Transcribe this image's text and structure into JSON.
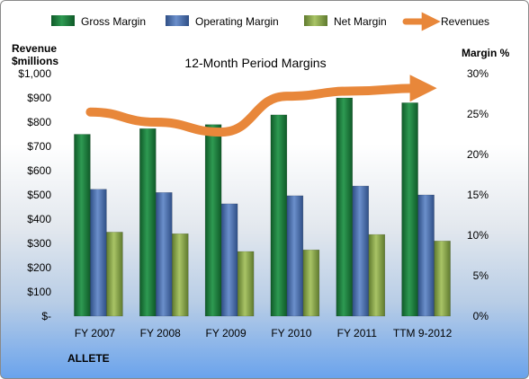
{
  "chart_data": {
    "type": "bar",
    "title": "12-Month Period Margins",
    "company": "ALLETE",
    "categories": [
      "FY 2007",
      "FY 2008",
      "FY 2009",
      "FY 2010",
      "FY 2011",
      "TTM 9-2012"
    ],
    "y_left": {
      "label_line1": "Revenue",
      "label_line2": "$millions",
      "ticks": [
        "$-",
        "$100",
        "$200",
        "$300",
        "$400",
        "$500",
        "$600",
        "$700",
        "$800",
        "$900",
        "$1,000"
      ],
      "range": [
        0,
        1000
      ]
    },
    "y_right": {
      "label": "Margin %",
      "ticks": [
        "0%",
        "5%",
        "10%",
        "15%",
        "20%",
        "25%",
        "30%"
      ],
      "range": [
        0,
        30
      ]
    },
    "grid": false,
    "legend_position": "top",
    "series": [
      {
        "name": "Gross Margin",
        "axis": "right",
        "color": "#1e7a3c",
        "values": [
          22.5,
          23.2,
          23.7,
          24.9,
          27.0,
          26.4
        ]
      },
      {
        "name": "Operating Margin",
        "axis": "right",
        "color": "#4a6ea8",
        "values": [
          15.7,
          15.3,
          13.9,
          14.9,
          16.1,
          15.0
        ]
      },
      {
        "name": "Net Margin",
        "axis": "right",
        "color": "#8aa84a",
        "values": [
          10.4,
          10.2,
          8.0,
          8.2,
          10.1,
          9.3
        ]
      },
      {
        "name": "Revenues",
        "axis": "left",
        "type": "line",
        "color": "#e8873a",
        "values": [
          842,
          800,
          759,
          907,
          928,
          940
        ]
      }
    ]
  }
}
